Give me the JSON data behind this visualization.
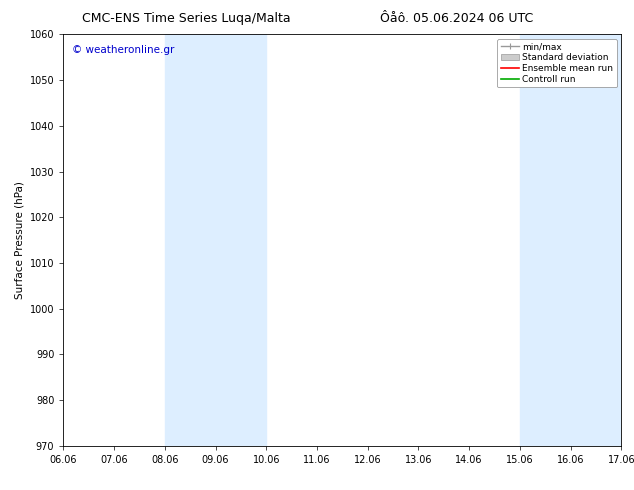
{
  "title_left": "CMC-ENS Time Series Luqa/Malta",
  "title_right": "Ôåô. 05.06.2024 06 UTC",
  "ylabel": "Surface Pressure (hPa)",
  "ylim": [
    970,
    1060
  ],
  "yticks": [
    970,
    980,
    990,
    1000,
    1010,
    1020,
    1030,
    1040,
    1050,
    1060
  ],
  "xlim": [
    0,
    11
  ],
  "xtick_labels": [
    "06.06",
    "07.06",
    "08.06",
    "09.06",
    "10.06",
    "11.06",
    "12.06",
    "13.06",
    "14.06",
    "15.06",
    "16.06",
    "17.06"
  ],
  "xtick_positions": [
    0,
    1,
    2,
    3,
    4,
    5,
    6,
    7,
    8,
    9,
    10,
    11
  ],
  "shaded_bands": [
    {
      "x_start": 2,
      "x_end": 4,
      "color": "#ddeeff"
    },
    {
      "x_start": 9,
      "x_end": 11,
      "color": "#ddeeff"
    }
  ],
  "copyright_text": "© weatheronline.gr",
  "copyright_color": "#0000cc",
  "bg_color": "#ffffff",
  "axes_bg_color": "#ffffff",
  "title_fontsize": 9,
  "tick_fontsize": 7,
  "ylabel_fontsize": 7.5,
  "copyright_fontsize": 7.5,
  "legend_fontsize": 6.5
}
